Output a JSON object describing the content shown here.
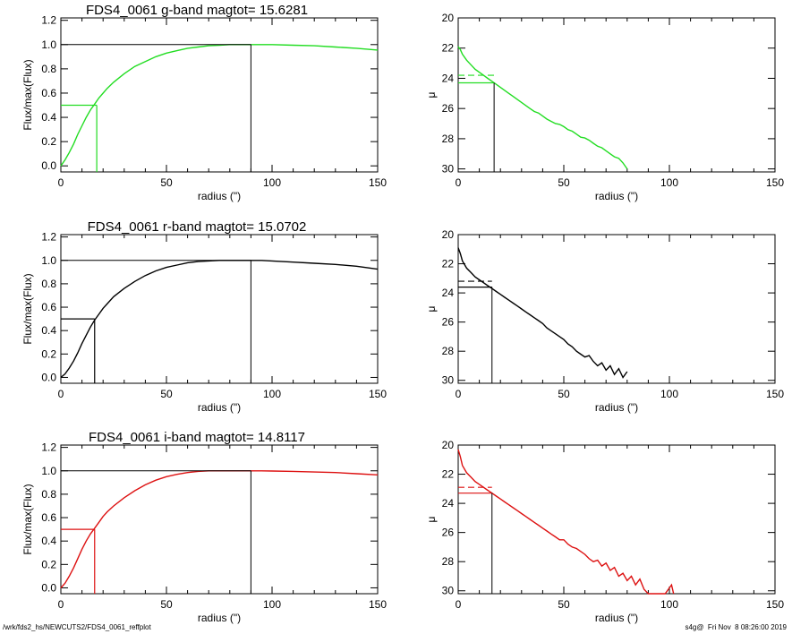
{
  "footer": {
    "left": "/wrk/fds2_hs/NEWCUTS2/FDS4_0061_reffplot",
    "right": "s4g@  Fri Nov  8 08:26:00 2019"
  },
  "colors": {
    "g": "#22dd22",
    "r": "#000000",
    "i": "#dd1111",
    "axes": "#000000"
  },
  "chart_data": [
    {
      "type": "line",
      "band": "g",
      "title": "FDS4_0061 g-band  magtot=     15.6281",
      "xlabel": "radius (\")",
      "ylabel": "Flux/max(Flux)",
      "xlim": [
        0,
        150
      ],
      "ylim": [
        -0.05,
        1.22
      ],
      "xticks": [
        0,
        50,
        100,
        150
      ],
      "yticks": [
        0.0,
        0.2,
        0.4,
        0.6,
        0.8,
        1.0,
        1.2
      ],
      "ytick_labels": [
        "0.0",
        "0.2",
        "0.4",
        "0.6",
        "0.8",
        "1.0",
        "1.2"
      ],
      "series": [
        {
          "x": [
            0,
            2,
            4,
            6,
            8,
            10,
            12,
            14,
            16,
            18,
            20,
            22,
            25,
            30,
            35,
            40,
            45,
            50,
            55,
            60,
            65,
            70,
            75,
            80,
            85,
            90,
            95,
            100,
            110,
            120,
            130,
            140,
            150
          ],
          "y": [
            0,
            0.05,
            0.11,
            0.18,
            0.26,
            0.33,
            0.4,
            0.46,
            0.51,
            0.56,
            0.6,
            0.64,
            0.69,
            0.76,
            0.82,
            0.86,
            0.9,
            0.93,
            0.95,
            0.97,
            0.98,
            0.99,
            0.995,
            1.0,
            1.0,
            1.0,
            1.0,
            1.0,
            0.995,
            0.99,
            0.98,
            0.97,
            0.955
          ]
        }
      ],
      "reff": 17,
      "half_level": 0.5,
      "rmax": 90,
      "max_level": 1.0
    },
    {
      "type": "line",
      "band": "g",
      "title": "",
      "xlabel": "radius (\")",
      "ylabel": "μ",
      "xlim": [
        0,
        150
      ],
      "ylim": [
        30.2,
        20
      ],
      "xticks": [
        0,
        50,
        100,
        150
      ],
      "yticks": [
        20,
        22,
        24,
        26,
        28,
        30
      ],
      "ytick_labels": [
        "20",
        "22",
        "24",
        "26",
        "28",
        "30"
      ],
      "series": [
        {
          "x": [
            0,
            1,
            2,
            4,
            6,
            8,
            10,
            12,
            14,
            16,
            18,
            20,
            22,
            24,
            26,
            28,
            30,
            32,
            34,
            36,
            38,
            40,
            42,
            44,
            46,
            48,
            50,
            52,
            54,
            56,
            58,
            60,
            62,
            64,
            66,
            68,
            70,
            72,
            74,
            76,
            78,
            80
          ],
          "y": [
            21.9,
            22.1,
            22.4,
            22.8,
            23.1,
            23.4,
            23.6,
            23.8,
            24.0,
            24.2,
            24.4,
            24.6,
            24.8,
            25.0,
            25.2,
            25.4,
            25.6,
            25.8,
            26.0,
            26.2,
            26.3,
            26.5,
            26.7,
            26.85,
            27.0,
            27.05,
            27.2,
            27.4,
            27.5,
            27.7,
            27.9,
            27.95,
            28.1,
            28.3,
            28.5,
            28.6,
            28.8,
            29.0,
            29.2,
            29.3,
            29.6,
            30.0
          ]
        }
      ],
      "reff": 17,
      "mu_eff": 24.3,
      "mu_dash": 23.8
    },
    {
      "type": "line",
      "band": "r",
      "title": "FDS4_0061 r-band  magtot=     15.0702",
      "xlabel": "radius (\")",
      "ylabel": "Flux/max(Flux)",
      "xlim": [
        0,
        150
      ],
      "ylim": [
        -0.05,
        1.22
      ],
      "xticks": [
        0,
        50,
        100,
        150
      ],
      "yticks": [
        0.0,
        0.2,
        0.4,
        0.6,
        0.8,
        1.0,
        1.2
      ],
      "ytick_labels": [
        "0.0",
        "0.2",
        "0.4",
        "0.6",
        "0.8",
        "1.0",
        "1.2"
      ],
      "series": [
        {
          "x": [
            0,
            2,
            4,
            6,
            8,
            10,
            12,
            14,
            16,
            18,
            20,
            22,
            25,
            30,
            35,
            40,
            45,
            50,
            55,
            60,
            65,
            70,
            75,
            80,
            85,
            90,
            95,
            100,
            110,
            120,
            130,
            140,
            150
          ],
          "y": [
            0,
            0.03,
            0.08,
            0.14,
            0.21,
            0.29,
            0.36,
            0.43,
            0.49,
            0.54,
            0.59,
            0.63,
            0.69,
            0.76,
            0.82,
            0.87,
            0.91,
            0.94,
            0.96,
            0.98,
            0.99,
            0.995,
            1.0,
            1.0,
            1.0,
            1.0,
            1.0,
            0.995,
            0.985,
            0.975,
            0.965,
            0.95,
            0.925
          ]
        }
      ],
      "reff": 16,
      "half_level": 0.5,
      "rmax": 90,
      "max_level": 1.0
    },
    {
      "type": "line",
      "band": "r",
      "title": "",
      "xlabel": "radius (\")",
      "ylabel": "μ",
      "xlim": [
        0,
        150
      ],
      "ylim": [
        30.2,
        20
      ],
      "xticks": [
        0,
        50,
        100,
        150
      ],
      "yticks": [
        20,
        22,
        24,
        26,
        28,
        30
      ],
      "ytick_labels": [
        "20",
        "22",
        "24",
        "26",
        "28",
        "30"
      ],
      "series": [
        {
          "x": [
            0,
            1,
            2,
            4,
            6,
            8,
            10,
            12,
            14,
            16,
            18,
            20,
            22,
            24,
            26,
            28,
            30,
            32,
            34,
            36,
            38,
            40,
            42,
            44,
            46,
            48,
            50,
            52,
            54,
            56,
            58,
            60,
            62,
            64,
            66,
            68,
            70,
            72,
            74,
            76,
            78,
            80
          ],
          "y": [
            20.9,
            21.3,
            21.8,
            22.3,
            22.6,
            22.9,
            23.1,
            23.3,
            23.5,
            23.7,
            23.9,
            24.1,
            24.3,
            24.5,
            24.7,
            24.9,
            25.1,
            25.3,
            25.5,
            25.7,
            25.9,
            26.1,
            26.4,
            26.6,
            26.8,
            27.0,
            27.2,
            27.5,
            27.7,
            28.0,
            28.2,
            28.4,
            28.3,
            28.7,
            29.0,
            28.8,
            29.3,
            29.0,
            29.6,
            29.2,
            29.8,
            29.4
          ]
        }
      ],
      "reff": 16,
      "mu_eff": 23.6,
      "mu_dash": 23.2
    },
    {
      "type": "line",
      "band": "i",
      "title": "FDS4_0061 i-band  magtot=     14.8117",
      "xlabel": "radius (\")",
      "ylabel": "Flux/max(Flux)",
      "xlim": [
        0,
        150
      ],
      "ylim": [
        -0.05,
        1.22
      ],
      "xticks": [
        0,
        50,
        100,
        150
      ],
      "yticks": [
        0.0,
        0.2,
        0.4,
        0.6,
        0.8,
        1.0,
        1.2
      ],
      "ytick_labels": [
        "0.0",
        "0.2",
        "0.4",
        "0.6",
        "0.8",
        "1.0",
        "1.2"
      ],
      "series": [
        {
          "x": [
            0,
            2,
            4,
            6,
            8,
            10,
            12,
            14,
            16,
            18,
            20,
            22,
            25,
            30,
            35,
            40,
            45,
            50,
            55,
            60,
            65,
            70,
            75,
            80,
            85,
            90,
            95,
            100,
            110,
            120,
            130,
            140,
            150
          ],
          "y": [
            0,
            0.04,
            0.1,
            0.17,
            0.25,
            0.33,
            0.4,
            0.46,
            0.51,
            0.56,
            0.61,
            0.65,
            0.7,
            0.77,
            0.83,
            0.88,
            0.92,
            0.95,
            0.97,
            0.985,
            0.995,
            1.0,
            1.0,
            1.0,
            1.0,
            1.0,
            1.0,
            0.998,
            0.995,
            0.99,
            0.985,
            0.975,
            0.965
          ]
        }
      ],
      "reff": 16,
      "half_level": 0.5,
      "rmax": 90,
      "max_level": 1.0
    },
    {
      "type": "line",
      "band": "i",
      "title": "",
      "xlabel": "radius (\")",
      "ylabel": "μ",
      "xlim": [
        0,
        150
      ],
      "ylim": [
        30.2,
        20
      ],
      "xticks": [
        0,
        50,
        100,
        150
      ],
      "yticks": [
        20,
        22,
        24,
        26,
        28,
        30
      ],
      "ytick_labels": [
        "20",
        "22",
        "24",
        "26",
        "28",
        "30"
      ],
      "series": [
        {
          "x": [
            0,
            1,
            2,
            4,
            6,
            8,
            10,
            12,
            14,
            16,
            18,
            20,
            22,
            24,
            26,
            28,
            30,
            32,
            34,
            36,
            38,
            40,
            42,
            44,
            46,
            48,
            50,
            52,
            54,
            56,
            58,
            60,
            62,
            64,
            66,
            68,
            70,
            72,
            74,
            76,
            78,
            80,
            82,
            84,
            86,
            88,
            90,
            92,
            94,
            96,
            98,
            100,
            101,
            102
          ],
          "y": [
            20.3,
            20.8,
            21.4,
            21.9,
            22.2,
            22.5,
            22.7,
            22.9,
            23.1,
            23.3,
            23.5,
            23.7,
            23.9,
            24.1,
            24.3,
            24.5,
            24.7,
            24.9,
            25.1,
            25.3,
            25.5,
            25.7,
            25.9,
            26.1,
            26.3,
            26.5,
            26.5,
            26.8,
            27.0,
            27.1,
            27.3,
            27.5,
            27.8,
            28.0,
            27.9,
            28.3,
            28.1,
            28.6,
            28.4,
            29.0,
            28.8,
            29.3,
            29.0,
            29.6,
            29.2,
            29.9,
            30.2,
            30.2,
            30.2,
            30.2,
            30.2,
            29.8,
            29.6,
            30.2
          ]
        }
      ],
      "reff": 16,
      "mu_eff": 23.3,
      "mu_dash": 22.9
    }
  ]
}
